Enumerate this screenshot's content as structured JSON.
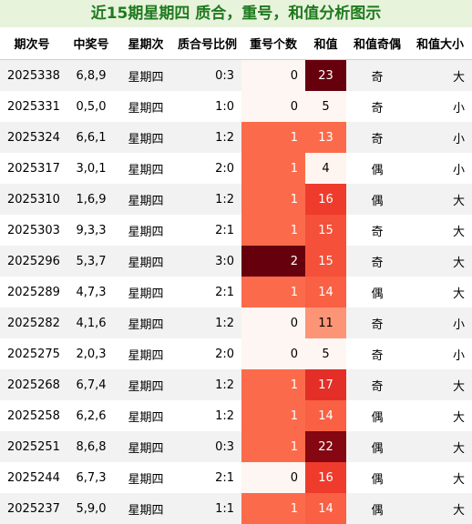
{
  "title": "近15期星期四 质合，重号，和值分析图示",
  "headers": [
    "期次号",
    "中奖号",
    "星期次",
    "质合号比例",
    "重号个数",
    "和值",
    "和值奇偶",
    "和值大小"
  ],
  "rows": [
    {
      "period": "2025338",
      "numbers": "6,8,9",
      "weekday": "星期四",
      "ratio": "0:3",
      "repeat": "0",
      "sum": "23",
      "parity": "奇",
      "size": "大",
      "repeat_bg": "#fef6f2",
      "repeat_fg": "#000000",
      "sum_bg": "#67000d",
      "sum_fg": "#ffffff"
    },
    {
      "period": "2025331",
      "numbers": "0,5,0",
      "weekday": "星期四",
      "ratio": "1:0",
      "repeat": "0",
      "sum": "5",
      "parity": "奇",
      "size": "小",
      "repeat_bg": "#fef6f2",
      "repeat_fg": "#000000",
      "sum_bg": "#fef6f2",
      "sum_fg": "#000000"
    },
    {
      "period": "2025324",
      "numbers": "6,6,1",
      "weekday": "星期四",
      "ratio": "1:2",
      "repeat": "1",
      "sum": "13",
      "parity": "奇",
      "size": "小",
      "repeat_bg": "#fb6b4b",
      "repeat_fg": "#ffffff",
      "sum_bg": "#fb6b4b",
      "sum_fg": "#ffffff"
    },
    {
      "period": "2025317",
      "numbers": "3,0,1",
      "weekday": "星期四",
      "ratio": "2:0",
      "repeat": "1",
      "sum": "4",
      "parity": "偶",
      "size": "小",
      "repeat_bg": "#fb6b4b",
      "repeat_fg": "#ffffff",
      "sum_bg": "#fff5f0",
      "sum_fg": "#000000"
    },
    {
      "period": "2025310",
      "numbers": "1,6,9",
      "weekday": "星期四",
      "ratio": "1:2",
      "repeat": "1",
      "sum": "16",
      "parity": "偶",
      "size": "大",
      "repeat_bg": "#fb6b4b",
      "repeat_fg": "#ffffff",
      "sum_bg": "#ef3b2c",
      "sum_fg": "#ffffff"
    },
    {
      "period": "2025303",
      "numbers": "9,3,3",
      "weekday": "星期四",
      "ratio": "2:1",
      "repeat": "1",
      "sum": "15",
      "parity": "奇",
      "size": "大",
      "repeat_bg": "#fb6b4b",
      "repeat_fg": "#ffffff",
      "sum_bg": "#f4503a",
      "sum_fg": "#ffffff"
    },
    {
      "period": "2025296",
      "numbers": "5,3,7",
      "weekday": "星期四",
      "ratio": "3:0",
      "repeat": "2",
      "sum": "15",
      "parity": "奇",
      "size": "大",
      "repeat_bg": "#67000d",
      "repeat_fg": "#ffffff",
      "sum_bg": "#f4503a",
      "sum_fg": "#ffffff"
    },
    {
      "period": "2025289",
      "numbers": "4,7,3",
      "weekday": "星期四",
      "ratio": "2:1",
      "repeat": "1",
      "sum": "14",
      "parity": "偶",
      "size": "大",
      "repeat_bg": "#fb6b4b",
      "repeat_fg": "#ffffff",
      "sum_bg": "#f96044",
      "sum_fg": "#ffffff"
    },
    {
      "period": "2025282",
      "numbers": "4,1,6",
      "weekday": "星期四",
      "ratio": "1:2",
      "repeat": "0",
      "sum": "11",
      "parity": "奇",
      "size": "小",
      "repeat_bg": "#fef6f2",
      "repeat_fg": "#000000",
      "sum_bg": "#fc9576",
      "sum_fg": "#000000"
    },
    {
      "period": "2025275",
      "numbers": "2,0,3",
      "weekday": "星期四",
      "ratio": "2:0",
      "repeat": "0",
      "sum": "5",
      "parity": "奇",
      "size": "小",
      "repeat_bg": "#fef6f2",
      "repeat_fg": "#000000",
      "sum_bg": "#fef6f2",
      "sum_fg": "#000000"
    },
    {
      "period": "2025268",
      "numbers": "6,7,4",
      "weekday": "星期四",
      "ratio": "1:2",
      "repeat": "1",
      "sum": "17",
      "parity": "奇",
      "size": "大",
      "repeat_bg": "#fb6b4b",
      "repeat_fg": "#ffffff",
      "sum_bg": "#e32f27",
      "sum_fg": "#ffffff"
    },
    {
      "period": "2025258",
      "numbers": "6,2,6",
      "weekday": "星期四",
      "ratio": "1:2",
      "repeat": "1",
      "sum": "14",
      "parity": "偶",
      "size": "大",
      "repeat_bg": "#fb6b4b",
      "repeat_fg": "#ffffff",
      "sum_bg": "#f96044",
      "sum_fg": "#ffffff"
    },
    {
      "period": "2025251",
      "numbers": "8,6,8",
      "weekday": "星期四",
      "ratio": "0:3",
      "repeat": "1",
      "sum": "22",
      "parity": "偶",
      "size": "大",
      "repeat_bg": "#fb6b4b",
      "repeat_fg": "#ffffff",
      "sum_bg": "#840711",
      "sum_fg": "#ffffff"
    },
    {
      "period": "2025244",
      "numbers": "6,7,3",
      "weekday": "星期四",
      "ratio": "2:1",
      "repeat": "0",
      "sum": "16",
      "parity": "偶",
      "size": "大",
      "repeat_bg": "#fef6f2",
      "repeat_fg": "#000000",
      "sum_bg": "#ef3b2c",
      "sum_fg": "#ffffff"
    },
    {
      "period": "2025237",
      "numbers": "5,9,0",
      "weekday": "星期四",
      "ratio": "1:1",
      "repeat": "1",
      "sum": "14",
      "parity": "偶",
      "size": "大",
      "repeat_bg": "#fb6b4b",
      "repeat_fg": "#ffffff",
      "sum_bg": "#f96044",
      "sum_fg": "#ffffff"
    }
  ]
}
